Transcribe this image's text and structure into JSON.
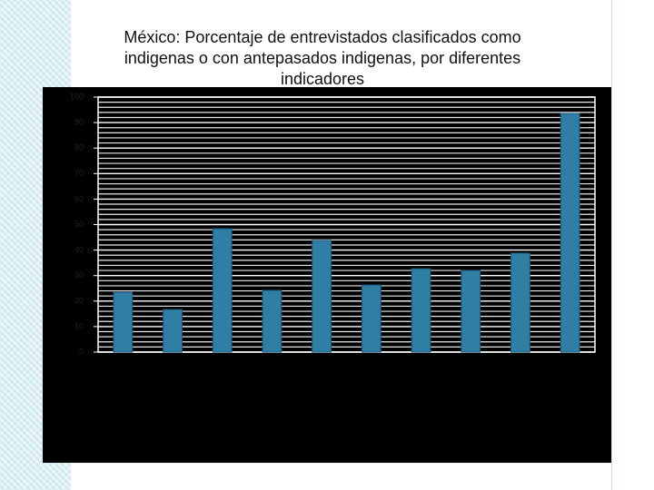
{
  "chart_data": {
    "type": "bar",
    "title": "México: Porcentaje de entrevistados clasificados como indigenas o con antepasados indigenas, por diferentes indicadores",
    "categories": [
      null,
      null,
      null,
      null,
      null,
      null,
      null,
      null,
      null,
      null
    ],
    "values": [
      23.5,
      16.7,
      48.4,
      24.2,
      43.8,
      26.3,
      32.7,
      32.0,
      38.8,
      93.6
    ],
    "color": "#2f7ea6",
    "ylim": [
      0,
      100
    ],
    "yticks": [
      0,
      10,
      20,
      30,
      40,
      50,
      60,
      70,
      80,
      90,
      100
    ],
    "minor_yticks": [
      2,
      4,
      6,
      8,
      12,
      14,
      16,
      18,
      22,
      24,
      26,
      28,
      32,
      34,
      36,
      38,
      42,
      44,
      46,
      48,
      52,
      54,
      56,
      58,
      62,
      64,
      66,
      68,
      72,
      74,
      76,
      78,
      82,
      84,
      86,
      88,
      92,
      94,
      96,
      98
    ],
    "grid": true
  }
}
